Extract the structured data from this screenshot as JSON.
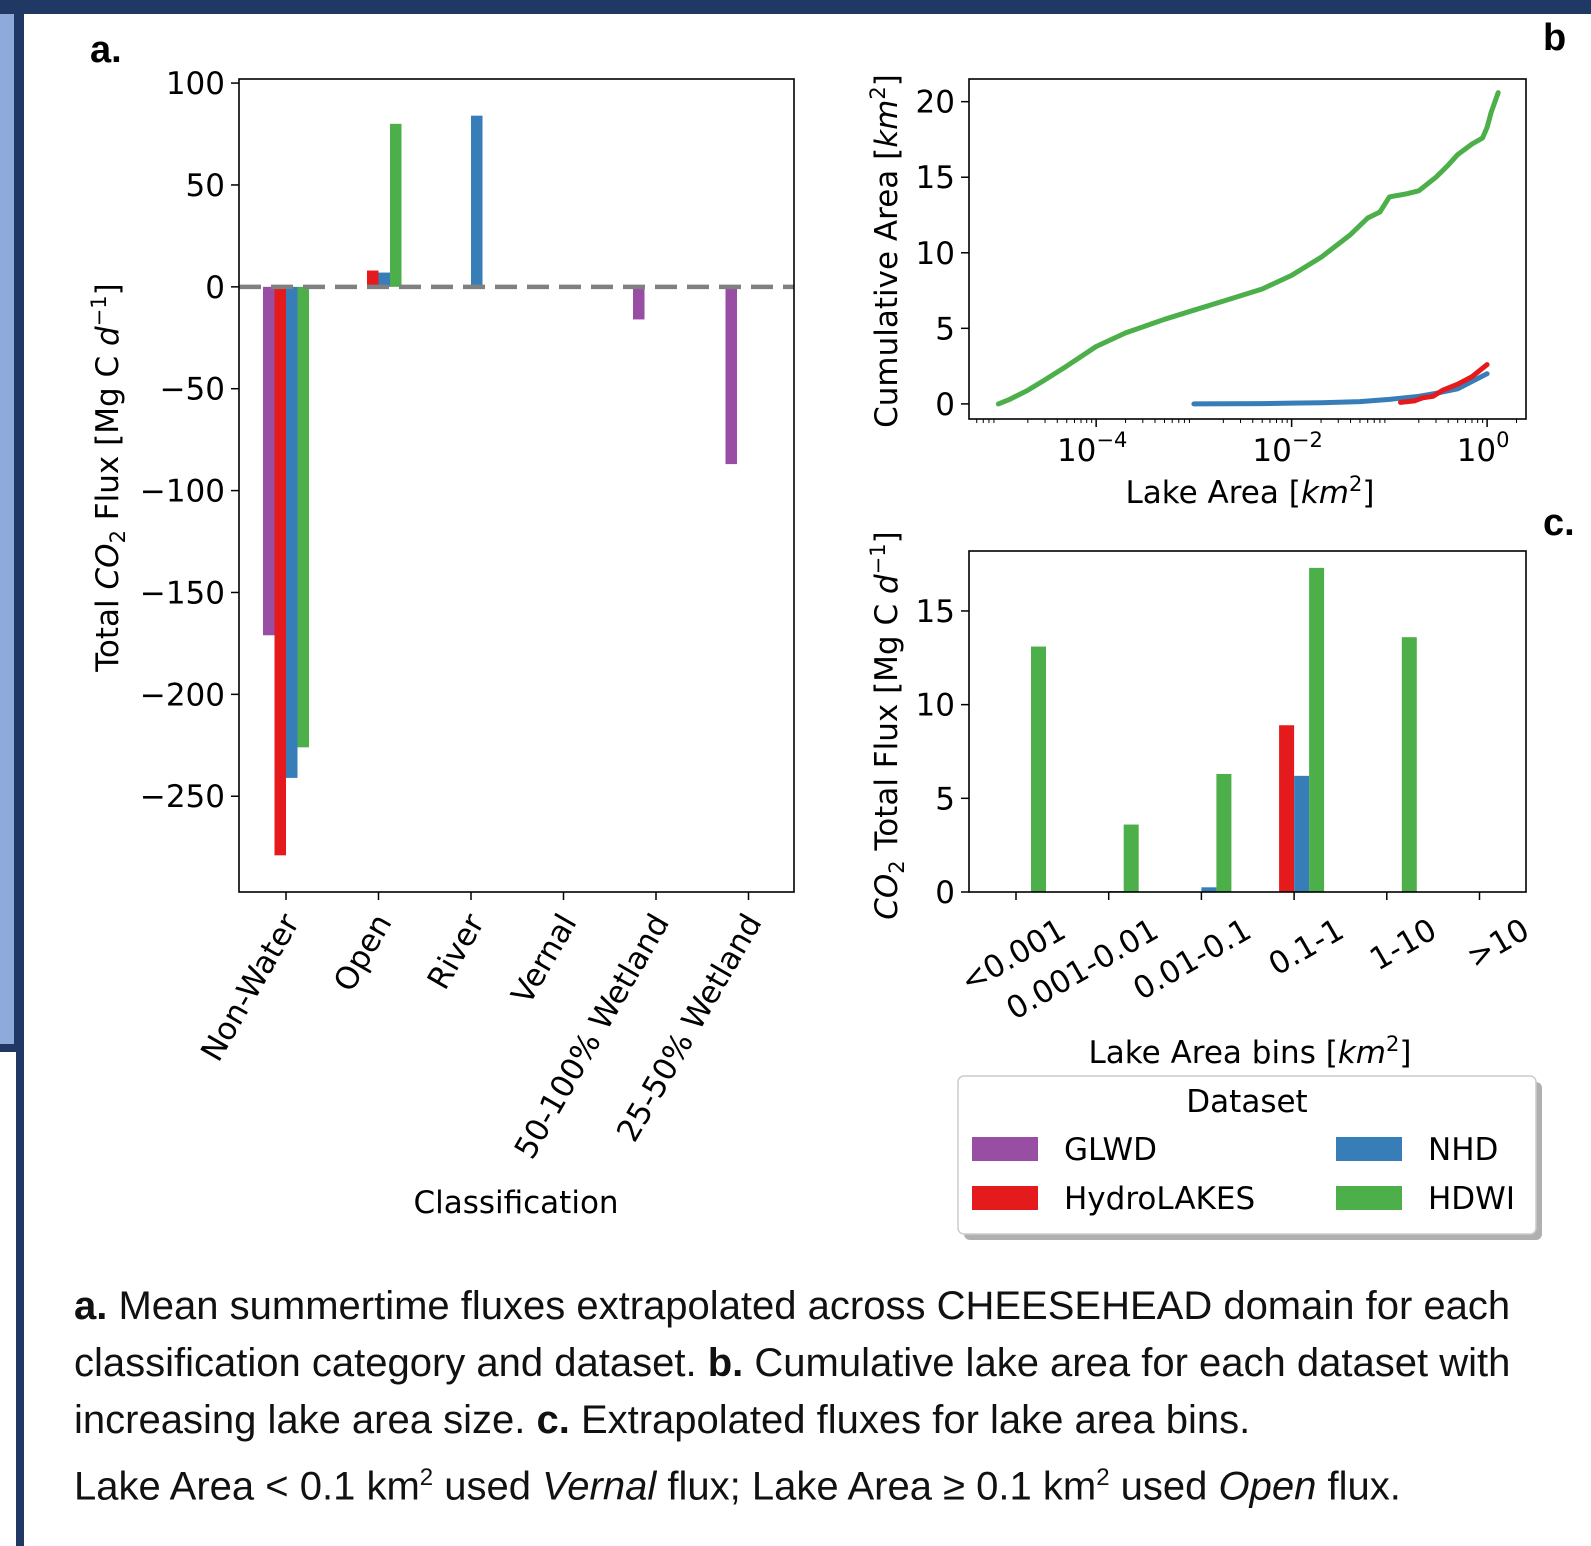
{
  "colors": {
    "GLWD": "#984ea3",
    "HydroLAKES": "#e41a1c",
    "NHD": "#377eb8",
    "HDWI": "#4daf4a",
    "zero_line": "#808080"
  },
  "panel_labels": {
    "a": "a.",
    "b": "b",
    "c": "c."
  },
  "chart_data": [
    {
      "type": "bar",
      "panel": "a",
      "xlabel": "Classification",
      "ylabel": "Total CO₂ Flux [Mg C d⁻¹]",
      "ylabel_parts": {
        "pre": "Total ",
        "var": "CO",
        "sub": "2",
        "post": " Flux [Mg C ",
        "var2": "d",
        "sup": "−1",
        "end": "]"
      },
      "ylim": [
        -297,
        102
      ],
      "yticks": [
        100,
        50,
        0,
        -50,
        -100,
        -150,
        -200,
        -250
      ],
      "ytick_labels": [
        "100",
        "50",
        "0",
        "−50",
        "−100",
        "−150",
        "−200",
        "−250"
      ],
      "categories": [
        "Non-Water",
        "Open",
        "River",
        "Vernal",
        "50-100% Wetland",
        "25-50% Wetland"
      ],
      "series": [
        {
          "name": "GLWD",
          "values": [
            -171,
            0,
            0,
            0,
            -16,
            -87
          ]
        },
        {
          "name": "HydroLAKES",
          "values": [
            -279,
            8,
            0,
            0,
            0,
            0
          ]
        },
        {
          "name": "NHD",
          "values": [
            -241,
            7,
            84,
            0,
            0,
            0
          ]
        },
        {
          "name": "HDWI",
          "values": [
            -226,
            80,
            0,
            0,
            0,
            0
          ]
        }
      ],
      "hline": 0
    },
    {
      "type": "line",
      "panel": "b",
      "xlabel": "Lake Area [km²]",
      "ylabel": "Cumulative Area [km²]",
      "xscale": "log",
      "xlim": [
        5e-06,
        2.5
      ],
      "ylim": [
        -1,
        21.5
      ],
      "xticks": [
        0.0001,
        0.01,
        1
      ],
      "xtick_labels": [
        {
          "base": "10",
          "exp": "−4"
        },
        {
          "base": "10",
          "exp": "−2"
        },
        {
          "base": "10",
          "exp": "0"
        }
      ],
      "yticks": [
        0,
        5,
        10,
        15,
        20
      ],
      "ytick_labels": [
        "0",
        "5",
        "10",
        "15",
        "20"
      ],
      "series": [
        {
          "name": "HDWI",
          "x": [
            1e-05,
            1.3e-05,
            2e-05,
            3e-05,
            5e-05,
            0.0001,
            0.0002,
            0.0005,
            0.001,
            0.002,
            0.005,
            0.01,
            0.02,
            0.04,
            0.06,
            0.08,
            0.1,
            0.15,
            0.2,
            0.3,
            0.4,
            0.5,
            0.7,
            0.9,
            1.0,
            1.1,
            1.3
          ],
          "y": [
            0,
            0.3,
            0.9,
            1.6,
            2.5,
            3.8,
            4.7,
            5.6,
            6.2,
            6.8,
            7.6,
            8.5,
            9.7,
            11.2,
            12.3,
            12.7,
            13.7,
            13.9,
            14.1,
            15,
            15.8,
            16.5,
            17.2,
            17.6,
            18.3,
            19.3,
            20.6
          ]
        },
        {
          "name": "NHD",
          "x": [
            0.001,
            0.005,
            0.01,
            0.02,
            0.05,
            0.1,
            0.2,
            0.3,
            0.5,
            1.0
          ],
          "y": [
            0,
            0.02,
            0.05,
            0.08,
            0.15,
            0.3,
            0.5,
            0.7,
            1.0,
            2.0
          ]
        },
        {
          "name": "HydroLAKES",
          "x": [
            0.13,
            0.18,
            0.22,
            0.28,
            0.35,
            0.5,
            0.7,
            1.0
          ],
          "y": [
            0.1,
            0.2,
            0.4,
            0.5,
            0.9,
            1.3,
            1.8,
            2.6
          ]
        }
      ]
    },
    {
      "type": "bar",
      "panel": "c",
      "xlabel": "Lake Area bins [km²]",
      "ylabel": "CO₂ Total Flux [Mg C d⁻¹]",
      "ylim": [
        0,
        18.2
      ],
      "yticks": [
        0,
        5,
        10,
        15
      ],
      "ytick_labels": [
        "0",
        "5",
        "10",
        "15"
      ],
      "categories": [
        "<0.001",
        "0.001-0.01",
        "0.01-0.1",
        "0.1-1",
        "1-10",
        ">10"
      ],
      "series": [
        {
          "name": "GLWD",
          "values": [
            0,
            0,
            0,
            0,
            0,
            0
          ]
        },
        {
          "name": "HydroLAKES",
          "values": [
            0,
            0,
            0,
            8.9,
            0,
            0
          ]
        },
        {
          "name": "NHD",
          "values": [
            0,
            0.05,
            0.25,
            6.2,
            0,
            0
          ]
        },
        {
          "name": "HDWI",
          "values": [
            13.1,
            3.6,
            6.3,
            17.3,
            13.6,
            0
          ]
        }
      ]
    }
  ],
  "legend": {
    "title": "Dataset",
    "items": [
      {
        "name": "GLWD",
        "color": "#984ea3"
      },
      {
        "name": "NHD",
        "color": "#377eb8"
      },
      {
        "name": "HydroLAKES",
        "color": "#e41a1c"
      },
      {
        "name": "HDWI",
        "color": "#4daf4a"
      }
    ]
  },
  "caption": {
    "a_label": "a.",
    "a_text": " Mean summertime fluxes extrapolated across CHEESEHEAD domain for each classification category and dataset. ",
    "b_label": "b.",
    "b_text": " Cumulative lake area for each dataset with increasing lake area size. ",
    "c_label": "c.",
    "c_text": " Extrapolated fluxes for lake area bins.",
    "line4_a": "Lake Area < 0.1 km",
    "sup": "2",
    "line4_b": " used ",
    "vernal": "Vernal",
    "line4_c": " flux; Lake Area ≥ 0.1 km",
    "line4_d": " used ",
    "open": "Open",
    "line4_e": " flux."
  }
}
